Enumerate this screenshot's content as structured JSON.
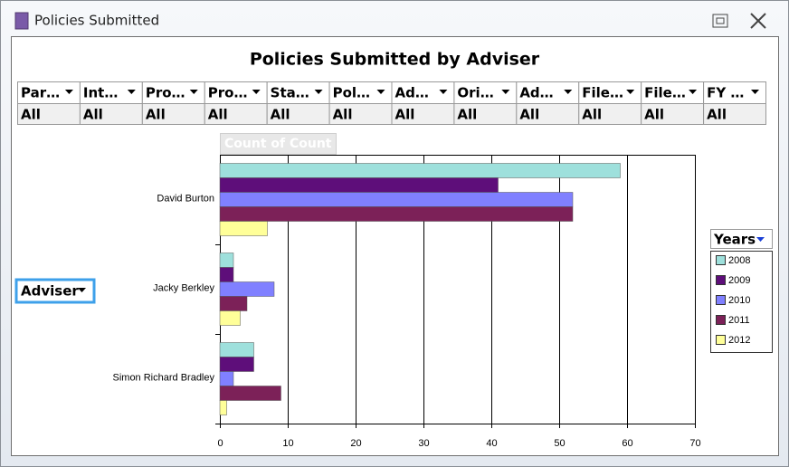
{
  "window": {
    "title": "Policies Submitted"
  },
  "filters": [
    {
      "label": "Par…",
      "value": "All"
    },
    {
      "label": "Int…",
      "value": "All"
    },
    {
      "label": "Pro…",
      "value": "All"
    },
    {
      "label": "Pro…",
      "value": "All"
    },
    {
      "label": "Sta…",
      "value": "All"
    },
    {
      "label": "Pol…",
      "value": "All"
    },
    {
      "label": "Ad…",
      "value": "All"
    },
    {
      "label": "Ori…",
      "value": "All"
    },
    {
      "label": "Ad…",
      "value": "All"
    },
    {
      "label": "File…",
      "value": "All"
    },
    {
      "label": "File…",
      "value": "All"
    },
    {
      "label": "FY …",
      "value": "All"
    }
  ],
  "chart_data": {
    "type": "bar",
    "orientation": "horizontal",
    "title": "Policies Submitted by Adviser",
    "data_field": "Count of Count",
    "row_field": "Adviser",
    "legend_title": "Years",
    "categories": [
      "David Burton",
      "Jacky Berkley",
      "Simon Richard Bradley"
    ],
    "series": [
      {
        "name": "2008",
        "color": "#9ee0dc",
        "values": [
          59,
          2,
          5
        ]
      },
      {
        "name": "2009",
        "color": "#5e0e7a",
        "values": [
          41,
          2,
          5
        ]
      },
      {
        "name": "2010",
        "color": "#8080ff",
        "values": [
          52,
          8,
          2
        ]
      },
      {
        "name": "2011",
        "color": "#7c2158",
        "values": [
          52,
          4,
          9
        ]
      },
      {
        "name": "2012",
        "color": "#ffff99",
        "values": [
          7,
          3,
          1
        ]
      }
    ],
    "xlim": [
      0,
      70
    ],
    "xticks": [
      0,
      10,
      20,
      30,
      40,
      50,
      60,
      70
    ],
    "grid": true
  }
}
